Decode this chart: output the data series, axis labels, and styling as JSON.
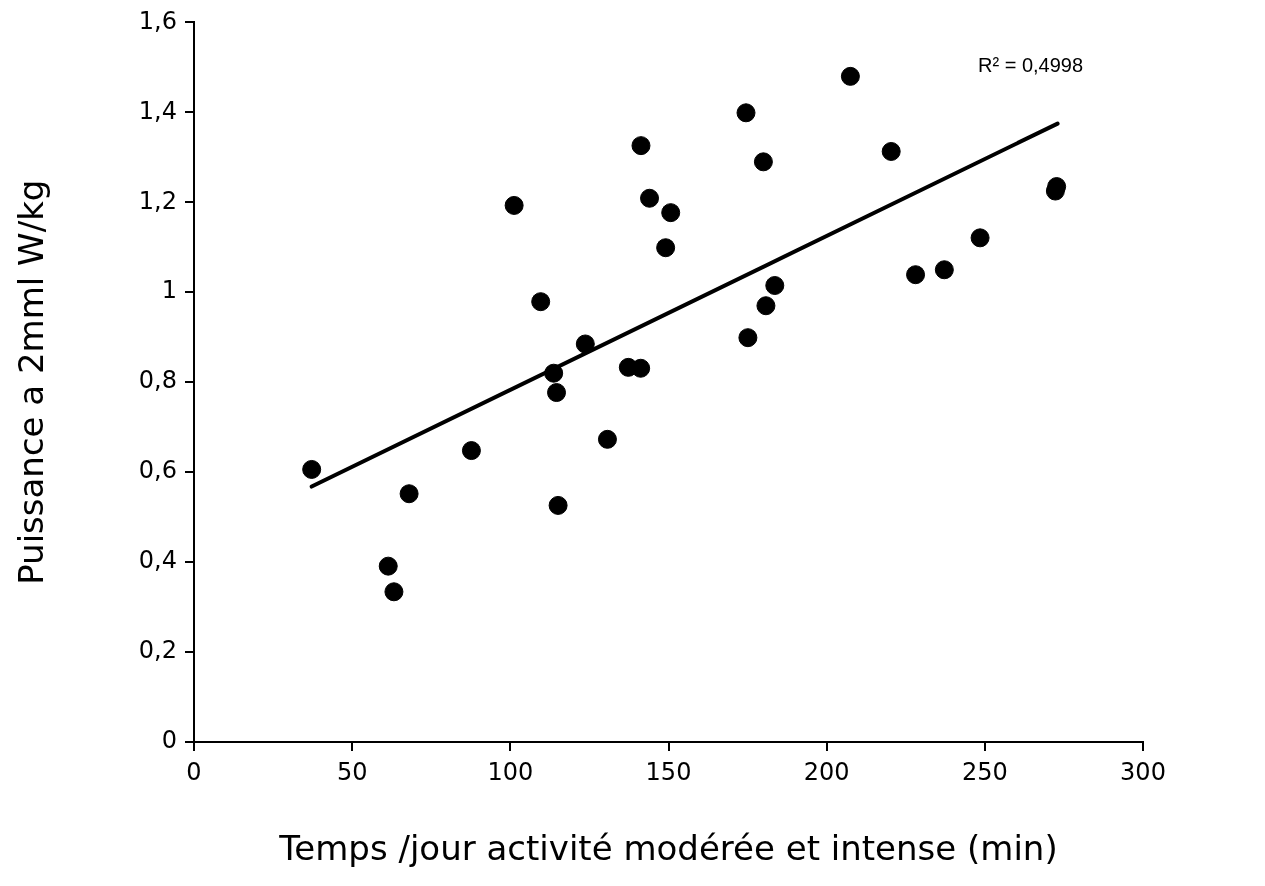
{
  "chart_data": {
    "type": "scatter",
    "xlabel": "Temps /jour activité modérée et intense (min)",
    "ylabel": "Puissance a 2mml W/kg",
    "xlim": [
      0,
      300
    ],
    "xticks": [
      0,
      50,
      100,
      150,
      200,
      250,
      300
    ],
    "ylim": [
      0,
      1.6
    ],
    "yticks": [
      0,
      {
        "value": 0.2,
        "label": "0,2"
      },
      {
        "value": 0.4,
        "label": "0,4"
      },
      {
        "value": 0.6,
        "label": "0,6"
      },
      {
        "value": 0.8,
        "label": "0,8"
      },
      1,
      {
        "value": 1.2,
        "label": "1,2"
      },
      {
        "value": 1.4,
        "label": "1,4"
      },
      {
        "value": 1.6,
        "label": "1,6"
      }
    ],
    "grid": false,
    "legend": false,
    "series": [
      {
        "color": "#000000",
        "marker": "circle",
        "x": [
          37.2,
          61.4,
          63.2,
          68.0,
          87.7,
          114.6,
          115.1,
          130.7,
          101.2,
          109.6,
          123.7,
          113.7,
          137.3,
          141.2,
          141.3,
          144.0,
          150.7,
          149.1,
          174.5,
          180.0,
          207.5,
          220.4,
          272.3,
          272.7,
          248.5,
          237.2,
          228.1,
          183.6,
          180.8,
          175.1
        ],
        "values": [
          0.606,
          0.391,
          0.334,
          0.552,
          0.648,
          0.777,
          0.526,
          0.673,
          1.193,
          0.979,
          0.885,
          0.82,
          0.833,
          0.831,
          1.326,
          1.209,
          1.177,
          1.099,
          1.399,
          1.29,
          1.48,
          1.313,
          1.225,
          1.235,
          1.121,
          1.05,
          1.039,
          1.015,
          0.97,
          0.899
        ]
      },
      {
        "type": "line",
        "marker": "none",
        "color": "#000000",
        "x": [
          37.2,
          273.0
        ],
        "values": [
          0.568,
          1.375
        ]
      }
    ],
    "annotations": [
      "R² = 0,4998"
    ]
  }
}
